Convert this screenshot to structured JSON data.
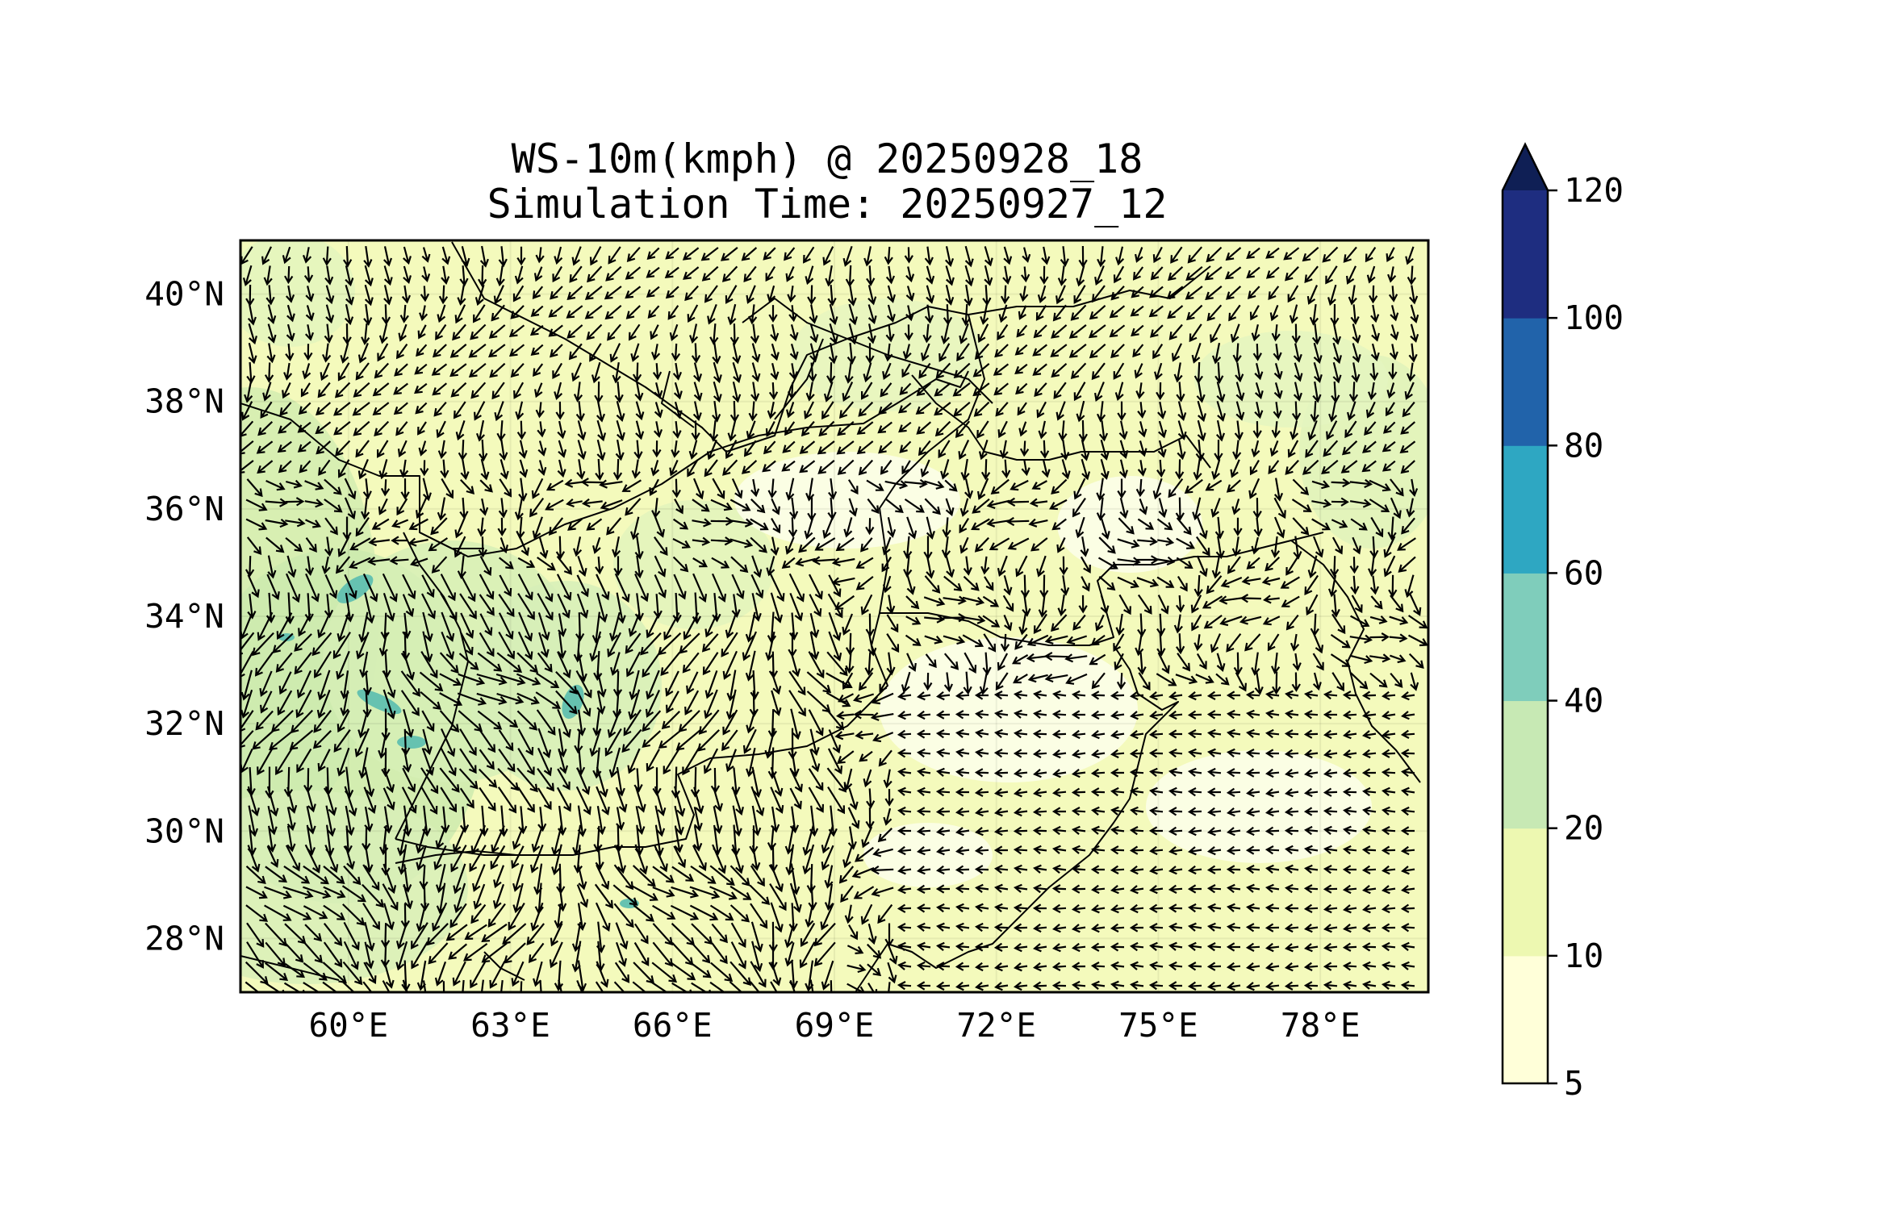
{
  "title": {
    "line1": "WS-10m(kmph) @ 20250928_18",
    "line2": "Simulation Time: 20250927_12"
  },
  "map": {
    "lon_range": [
      58.0,
      80.0
    ],
    "lat_range": [
      27.0,
      41.0
    ],
    "lon_ticks": [
      {
        "value": 60,
        "label": "60°E"
      },
      {
        "value": 63,
        "label": "63°E"
      },
      {
        "value": 66,
        "label": "66°E"
      },
      {
        "value": 69,
        "label": "69°E"
      },
      {
        "value": 72,
        "label": "72°E"
      },
      {
        "value": 75,
        "label": "75°E"
      },
      {
        "value": 78,
        "label": "78°E"
      }
    ],
    "lat_ticks": [
      {
        "value": 40,
        "label": "40°N"
      },
      {
        "value": 38,
        "label": "38°N"
      },
      {
        "value": 36,
        "label": "36°N"
      },
      {
        "value": 34,
        "label": "34°N"
      },
      {
        "value": 32,
        "label": "32°N"
      },
      {
        "value": 30,
        "label": "30°N"
      },
      {
        "value": 28,
        "label": "28°N"
      }
    ],
    "field": "10 m wind speed (kmph) with wind direction arrows",
    "background_color": "#f7fcc0"
  },
  "colorbar": {
    "levels": [
      5,
      10,
      20,
      40,
      60,
      80,
      100,
      120
    ],
    "tick_labels": [
      "5",
      "10",
      "20",
      "40",
      "60",
      "80",
      "100",
      "120"
    ],
    "colors": [
      "#ffffd9",
      "#edf8b1",
      "#c7e9b4",
      "#7fcdbb",
      "#2ea7c2",
      "#2163aa",
      "#1e2d80"
    ],
    "extend_color": "#0f1f55",
    "extend": "max"
  }
}
